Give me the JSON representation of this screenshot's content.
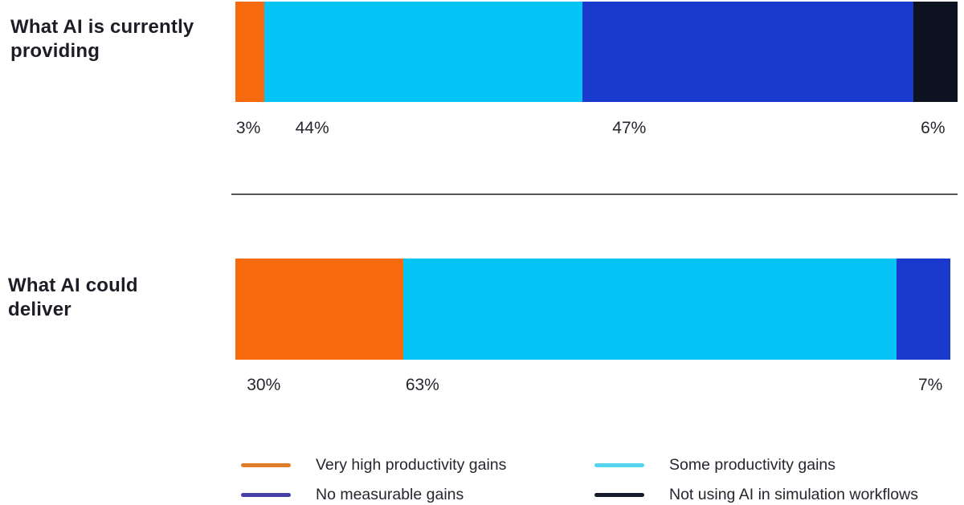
{
  "page": {
    "background": "#ffffff",
    "text_color": "#26262e",
    "divider_color": "#55565a"
  },
  "chart_data": {
    "type": "bar",
    "variant": "horizontal-stacked",
    "unit": "%",
    "grid": false,
    "legend_position": "bottom",
    "series": [
      {
        "name": "Very high productivity gains",
        "color": "#f76a0d",
        "swatch_color": "#e07e2c"
      },
      {
        "name": "Some productivity gains",
        "color": "#07c4f7",
        "swatch_color": "#55d4f0"
      },
      {
        "name": "No measurable gains",
        "color": "#1a3ace",
        "swatch_color": "#4540a8"
      },
      {
        "name": "Not using AI in simulation workflows",
        "color": "#0d1220",
        "swatch_color": "#161b2c"
      }
    ],
    "categories": [
      "What AI is currently providing",
      "What AI could deliver"
    ],
    "rows": [
      {
        "label": "What AI is currently providing",
        "series_order": [
          0,
          1,
          2,
          3
        ],
        "values": [
          3,
          44,
          47,
          6
        ],
        "value_labels": [
          "3%",
          "44%",
          "47%",
          "6%"
        ],
        "display_widths_pct": [
          4.0,
          44.0,
          45.9,
          6.1
        ],
        "label_positions_pct": [
          0.1,
          8.3,
          52.2,
          94.9
        ]
      },
      {
        "label": "What AI could deliver",
        "series_order": [
          0,
          1,
          2
        ],
        "values": [
          30,
          63,
          7
        ],
        "value_labels": [
          "30%",
          "63%",
          "7%"
        ],
        "display_widths_pct": [
          23.5,
          69.0,
          7.5
        ],
        "label_positions_pct": [
          1.6,
          23.8,
          95.5
        ]
      }
    ],
    "legend": {
      "columns": 2,
      "items": [
        {
          "label": "Very high productivity gains",
          "series": 0
        },
        {
          "label": "Some productivity gains",
          "series": 1
        },
        {
          "label": "No measurable gains",
          "series": 2
        },
        {
          "label": "Not using AI in simulation workflows",
          "series": 3
        }
      ]
    }
  }
}
